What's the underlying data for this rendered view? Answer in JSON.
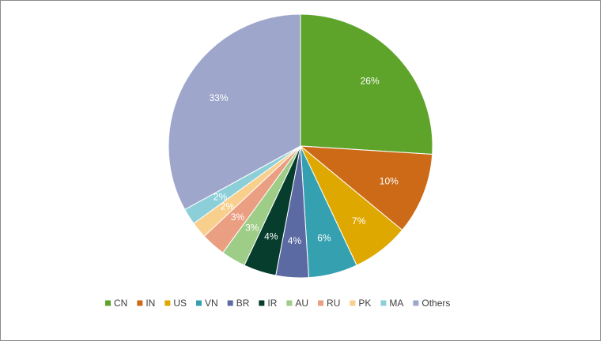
{
  "chart_data": {
    "type": "pie",
    "categories": [
      "CN",
      "IN",
      "US",
      "VN",
      "BR",
      "IR",
      "AU",
      "RU",
      "PK",
      "MA",
      "Others"
    ],
    "values": [
      26,
      10,
      7,
      6,
      4,
      4,
      3,
      3,
      2,
      2,
      33
    ],
    "labels": [
      "26%",
      "10%",
      "7%",
      "6%",
      "4%",
      "4%",
      "3%",
      "3%",
      "2%",
      "2%",
      "33%"
    ],
    "colors": [
      "#5ea42b",
      "#cd6a17",
      "#dfa800",
      "#35a0b0",
      "#5b6aa3",
      "#063d2c",
      "#9ecd88",
      "#ea9f82",
      "#f8cf8d",
      "#8dcfd9",
      "#9ea7cb"
    ],
    "legend_position": "bottom"
  }
}
